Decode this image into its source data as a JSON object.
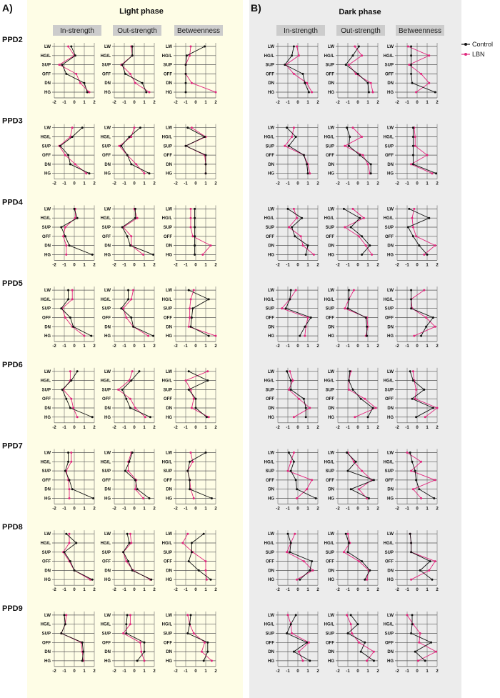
{
  "panels": [
    {
      "letter": "A)",
      "title": "Light phase"
    },
    {
      "letter": "B)",
      "title": "Dark phase"
    }
  ],
  "metrics": [
    "In-strength",
    "Out-strength",
    "Betweenness"
  ],
  "rows": [
    "PPD2",
    "PPD3",
    "PPD4",
    "PPD5",
    "PPD6",
    "PPD7",
    "PPD8",
    "PPD9"
  ],
  "y_categories": [
    "LW",
    "HG/L",
    "SUP",
    "OFF",
    "DN",
    "HG"
  ],
  "x_ticks": [
    "-2",
    "-1",
    "0",
    "1",
    "2"
  ],
  "legend": [
    {
      "name": "Control",
      "color": "#111111"
    },
    {
      "name": "LBN",
      "color": "#e0277d"
    }
  ],
  "chart_data": {
    "type": "line",
    "note_axes": "x = z-score (-2 to 2), y = behaviour category",
    "xlim": [
      -2,
      2
    ],
    "series_names": [
      "Control",
      "LBN"
    ],
    "data": {
      "light": {
        "In-strength": {
          "PPD2": {
            "Control": [
              -0.3,
              0.1,
              -1.2,
              -0.8,
              1.0,
              1.3
            ],
            "LBN": [
              -0.6,
              0.0,
              -1.5,
              0.2,
              0.6,
              1.5
            ]
          },
          "PPD3": {
            "Control": [
              0.8,
              -0.2,
              -1.4,
              -0.6,
              -0.4,
              1.5
            ],
            "LBN": [
              -0.2,
              -0.4,
              -1.5,
              -0.9,
              0.1,
              1.2
            ]
          },
          "PPD4": {
            "Control": [
              0.0,
              0.3,
              -1.3,
              -0.9,
              -0.5,
              1.8
            ],
            "LBN": [
              0.1,
              0.1,
              -0.9,
              -1.1,
              -0.8,
              -0.8
            ]
          },
          "PPD5": {
            "Control": [
              -0.6,
              -0.6,
              -1.3,
              -0.4,
              -0.1,
              1.7
            ],
            "LBN": [
              -0.2,
              -0.2,
              -1.2,
              -0.9,
              -0.2,
              1.0
            ]
          },
          "PPD6": {
            "Control": [
              0.3,
              -0.3,
              -1.2,
              -0.8,
              -0.4,
              1.8
            ],
            "LBN": [
              -0.4,
              -0.4,
              -1.1,
              -0.3,
              -0.1,
              0.3
            ]
          },
          "PPD7": {
            "Control": [
              -0.6,
              -0.6,
              -0.9,
              -0.5,
              -0.2,
              1.9
            ],
            "LBN": [
              -0.3,
              -0.3,
              -0.8,
              -0.6,
              -0.5,
              -0.5
            ]
          },
          "PPD8": {
            "Control": [
              -0.8,
              0.2,
              -1.0,
              -0.4,
              0.0,
              1.8
            ],
            "LBN": [
              -0.5,
              -0.5,
              -1.1,
              -0.5,
              0.0,
              1.6
            ]
          },
          "PPD9": {
            "Control": [
              -1.0,
              -0.9,
              -1.3,
              0.8,
              0.9,
              0.8
            ],
            "LBN": [
              -0.8,
              -0.9,
              -1.3,
              0.7,
              0.8,
              0.9
            ]
          }
        },
        "Out-strength": {
          "PPD2": {
            "Control": [
              -0.2,
              -0.2,
              -1.2,
              -0.9,
              0.8,
              1.2
            ],
            "LBN": [
              -0.3,
              -0.2,
              -1.3,
              -0.4,
              0.1,
              1.5
            ]
          },
          "PPD3": {
            "Control": [
              0.6,
              -0.5,
              -1.3,
              -0.7,
              -0.3,
              1.5
            ],
            "LBN": [
              0.0,
              -0.3,
              -1.5,
              -0.7,
              0.2,
              1.0
            ]
          },
          "PPD4": {
            "Control": [
              0.1,
              0.1,
              -1.2,
              -0.7,
              -0.4,
              1.9
            ],
            "LBN": [
              0.0,
              0.3,
              -1.1,
              -0.3,
              -0.3,
              0.9
            ]
          },
          "PPD5": {
            "Control": [
              -0.6,
              -0.6,
              -1.3,
              -0.3,
              -0.1,
              1.9
            ],
            "LBN": [
              -0.1,
              -0.3,
              -1.1,
              -0.8,
              -0.1,
              1.4
            ]
          },
          "PPD6": {
            "Control": [
              0.5,
              -0.3,
              -1.2,
              -0.8,
              -0.4,
              1.6
            ],
            "LBN": [
              -0.2,
              -0.5,
              -1.6,
              -0.4,
              0.1,
              1.1
            ]
          },
          "PPD7": {
            "Control": [
              -0.2,
              -0.5,
              -0.9,
              0.1,
              0.3,
              1.5
            ],
            "LBN": [
              -0.3,
              -0.6,
              -0.6,
              0.2,
              0.1,
              0.9
            ]
          },
          "PPD8": {
            "Control": [
              -0.7,
              -0.5,
              -1.1,
              -0.6,
              -0.2,
              1.7
            ],
            "LBN": [
              -0.4,
              -0.3,
              -1.1,
              -0.8,
              -0.1,
              1.6
            ]
          },
          "PPD9": {
            "Control": [
              -0.7,
              -0.8,
              -0.8,
              1.0,
              1.0,
              0.3
            ],
            "LBN": [
              -0.4,
              -0.4,
              -1.1,
              0.6,
              0.7,
              1.0
            ]
          }
        },
        "Betweenness": {
          "PPD2": {
            "Control": [
              0.9,
              -0.9,
              -1.0,
              -1.0,
              -1.0,
              -1.0
            ],
            "LBN": [
              -0.5,
              -0.6,
              -1.0,
              -1.0,
              -0.4,
              2.0
            ]
          },
          "PPD3": {
            "Control": [
              -0.8,
              0.9,
              -1.0,
              1.0,
              1.0,
              1.0
            ],
            "LBN": [
              -0.4,
              1.0,
              -1.0,
              0.9,
              1.0,
              1.0
            ]
          },
          "PPD4": {
            "Control": [
              -0.1,
              -0.1,
              -0.1,
              -0.1,
              -0.1,
              -0.1
            ],
            "LBN": [
              -0.5,
              -0.5,
              -0.5,
              -0.3,
              1.5,
              0.7
            ]
          },
          "PPD5": {
            "Control": [
              -0.7,
              1.3,
              -0.3,
              -0.4,
              -0.5,
              1.3
            ],
            "LBN": [
              -0.2,
              -0.5,
              -0.6,
              -0.6,
              -0.7,
              2.0
            ]
          },
          "PPD6": {
            "Control": [
              -0.7,
              1.2,
              -0.7,
              0.0,
              0.0,
              1.1
            ],
            "LBN": [
              1.2,
              -1.0,
              -0.5,
              -0.2,
              -0.4,
              1.3
            ]
          },
          "PPD7": {
            "Control": [
              1.0,
              -0.6,
              -0.8,
              -0.6,
              -0.6,
              1.6
            ],
            "LBN": [
              -0.5,
              -0.3,
              -0.8,
              -0.6,
              -0.5,
              -0.2
            ]
          },
          "PPD8": {
            "Control": [
              0.8,
              -0.4,
              -0.4,
              -0.7,
              0.3,
              1.5
            ],
            "LBN": [
              -0.8,
              -1.3,
              -0.3,
              1.0,
              1.0,
              1.1
            ]
          },
          "PPD9": {
            "Control": [
              -0.5,
              -0.6,
              -0.8,
              1.2,
              1.2,
              0.8
            ],
            "LBN": [
              -0.8,
              -0.6,
              -0.2,
              0.9,
              0.6,
              1.6
            ]
          }
        }
      },
      "dark": {
        "In-strength": {
          "PPD2": {
            "Control": [
              -0.4,
              -0.6,
              -1.3,
              0.5,
              0.7,
              1.1
            ],
            "LBN": [
              -0.1,
              0.1,
              -1.2,
              -0.4,
              0.9,
              1.4
            ]
          },
          "PPD3": {
            "Control": [
              -1.1,
              -0.2,
              -0.9,
              0.6,
              0.9,
              1.0
            ],
            "LBN": [
              -0.4,
              -0.6,
              -1.3,
              0.6,
              1.0,
              1.2
            ]
          },
          "PPD4": {
            "Control": [
              -1.0,
              0.4,
              -0.6,
              -0.3,
              1.0,
              0.8
            ],
            "LBN": [
              -0.4,
              -0.1,
              -0.9,
              0.3,
              0.5,
              1.6
            ]
          },
          "PPD5": {
            "Control": [
              -0.7,
              -0.8,
              -1.2,
              1.3,
              0.7,
              0.2
            ],
            "LBN": [
              -0.2,
              -0.8,
              -1.6,
              1.0,
              0.8,
              0.7
            ]
          },
          "PPD6": {
            "Control": [
              -1.1,
              -0.7,
              -0.7,
              0.6,
              0.8,
              0.8
            ],
            "LBN": [
              -0.8,
              -0.5,
              -0.9,
              0.1,
              1.2,
              -0.4
            ]
          },
          "PPD7": {
            "Control": [
              -0.9,
              -0.4,
              -0.7,
              -0.2,
              -0.1,
              1.8
            ],
            "LBN": [
              -0.4,
              -0.7,
              -1.0,
              1.4,
              0.9,
              -0.1
            ]
          },
          "PPD8": {
            "Control": [
              -1.0,
              -0.7,
              -0.8,
              1.4,
              1.2,
              0.2
            ],
            "LBN": [
              -0.3,
              -0.7,
              -1.1,
              0.6,
              1.5,
              -0.1
            ]
          },
          "PPD9": {
            "Control": [
              -0.2,
              -0.7,
              -1.1,
              0.9,
              -0.4,
              1.2
            ],
            "LBN": [
              -1.0,
              -0.7,
              -0.6,
              1.1,
              0.1,
              0.5
            ]
          }
        },
        "Out-strength": {
          "PPD2": {
            "Control": [
              0.1,
              -0.5,
              -1.2,
              0.0,
              1.0,
              1.1
            ],
            "LBN": [
              -0.3,
              0.4,
              -0.9,
              -0.2,
              1.3,
              1.5
            ]
          },
          "PPD3": {
            "Control": [
              -1.1,
              -0.8,
              -0.9,
              0.2,
              1.3,
              1.3
            ],
            "LBN": [
              -0.5,
              0.4,
              -1.3,
              0.5,
              1.0,
              1.2
            ]
          },
          "PPD4": {
            "Control": [
              -1.4,
              0.2,
              -0.7,
              0.4,
              1.2,
              0.4
            ],
            "LBN": [
              -0.5,
              0.6,
              -1.3,
              0.1,
              0.8,
              1.4
            ]
          },
          "PPD5": {
            "Control": [
              -0.9,
              -0.9,
              -1.0,
              0.8,
              0.9,
              0.9
            ],
            "LBN": [
              -0.4,
              -0.9,
              -1.3,
              0.9,
              1.0,
              0.8
            ]
          },
          "PPD6": {
            "Control": [
              -0.8,
              -0.9,
              -0.5,
              0.3,
              1.5,
              1.0
            ],
            "LBN": [
              -0.7,
              -0.9,
              -0.9,
              0.7,
              1.8,
              -0.3
            ]
          },
          "PPD7": {
            "Control": [
              -1.1,
              -0.2,
              -1.0,
              1.6,
              -0.7,
              1.1
            ],
            "LBN": [
              -1.0,
              -0.4,
              0.4,
              1.4,
              0.1,
              0.9
            ]
          },
          "PPD8": {
            "Control": [
              -1.2,
              -0.9,
              -1.0,
              0.4,
              1.2,
              0.7
            ],
            "LBN": [
              -1.0,
              -0.8,
              -1.4,
              0.1,
              1.1,
              0.9
            ]
          },
          "PPD9": {
            "Control": [
              -0.7,
              0.0,
              -1.0,
              0.7,
              0.3,
              1.6
            ],
            "LBN": [
              -1.1,
              -0.7,
              -0.6,
              0.1,
              1.6,
              0.9
            ]
          }
        },
        "Betweenness": {
          "PPD2": {
            "Control": [
              -0.6,
              -0.6,
              -0.6,
              -0.6,
              -0.5,
              1.8
            ],
            "LBN": [
              -0.9,
              1.2,
              -0.8,
              0.4,
              1.2,
              -0.1
            ]
          },
          "PPD3": {
            "Control": [
              -0.4,
              -0.4,
              -0.4,
              -0.4,
              -0.4,
              1.9
            ],
            "LBN": [
              -0.3,
              -0.2,
              -0.2,
              1.0,
              -0.6,
              1.5
            ]
          },
          "PPD4": {
            "Control": [
              -0.8,
              1.2,
              -0.9,
              -0.4,
              0.2,
              1.0
            ],
            "LBN": [
              -0.3,
              -0.5,
              -0.4,
              -0.1,
              1.8,
              0.7
            ]
          },
          "PPD5": {
            "Control": [
              -0.6,
              -0.6,
              -0.6,
              1.6,
              0.9,
              0.4
            ],
            "LBN": [
              0.7,
              -0.6,
              -0.5,
              0.9,
              1.8,
              -0.3
            ]
          },
          "PPD6": {
            "Control": [
              -0.7,
              -0.4,
              0.7,
              -0.5,
              1.6,
              -0.1
            ],
            "LBN": [
              -0.4,
              -0.3,
              -0.1,
              -0.2,
              2.0,
              0.8
            ]
          },
          "PPD7": {
            "Control": [
              -0.7,
              -0.5,
              -0.2,
              -0.1,
              0.2,
              1.7
            ],
            "LBN": [
              -1.0,
              0.4,
              -0.6,
              1.8,
              -0.4,
              0.4
            ]
          },
          "PPD8": {
            "Control": [
              -0.7,
              -0.6,
              -0.6,
              1.3,
              0.3,
              1.5
            ],
            "LBN": [
              -0.7,
              -0.6,
              -0.6,
              1.8,
              1.2,
              -0.6
            ]
          },
          "PPD9": {
            "Control": [
              -0.5,
              -0.5,
              -0.6,
              1.4,
              -0.2,
              0.8
            ],
            "LBN": [
              -1.0,
              -0.4,
              0.3,
              0.2,
              1.9,
              0.1
            ]
          }
        }
      }
    }
  }
}
